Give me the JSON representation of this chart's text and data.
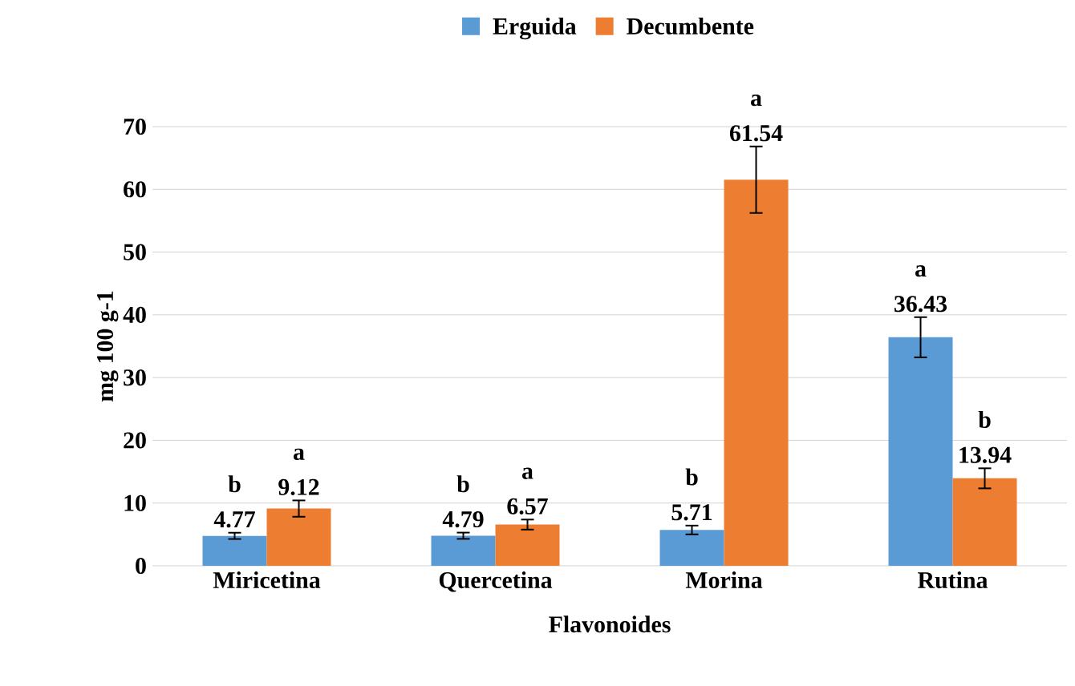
{
  "chart_data": {
    "type": "bar",
    "xlabel": "Flavonoides",
    "ylabel": "mg 100 g-1",
    "categories": [
      "Miricetina",
      "Quercetina",
      "Morina",
      "Rutina"
    ],
    "series": [
      {
        "name": "Erguida",
        "color": "#5b9bd5",
        "values": [
          4.77,
          4.79,
          5.71,
          36.43
        ],
        "errors": [
          0.5,
          0.5,
          0.7,
          3.2
        ]
      },
      {
        "name": "Decumbente",
        "color": "#ed7d31",
        "values": [
          9.12,
          6.57,
          61.54,
          13.94
        ],
        "errors": [
          1.3,
          0.8,
          5.3,
          1.6
        ]
      }
    ],
    "ylim": [
      0,
      70
    ],
    "yticks": [
      0,
      10,
      20,
      30,
      40,
      50,
      60,
      70
    ],
    "grid": "y",
    "legend": "top",
    "data_labels": true,
    "annotations": [
      "b",
      "a",
      "b",
      "a",
      "b",
      "a",
      "a",
      "b"
    ]
  }
}
